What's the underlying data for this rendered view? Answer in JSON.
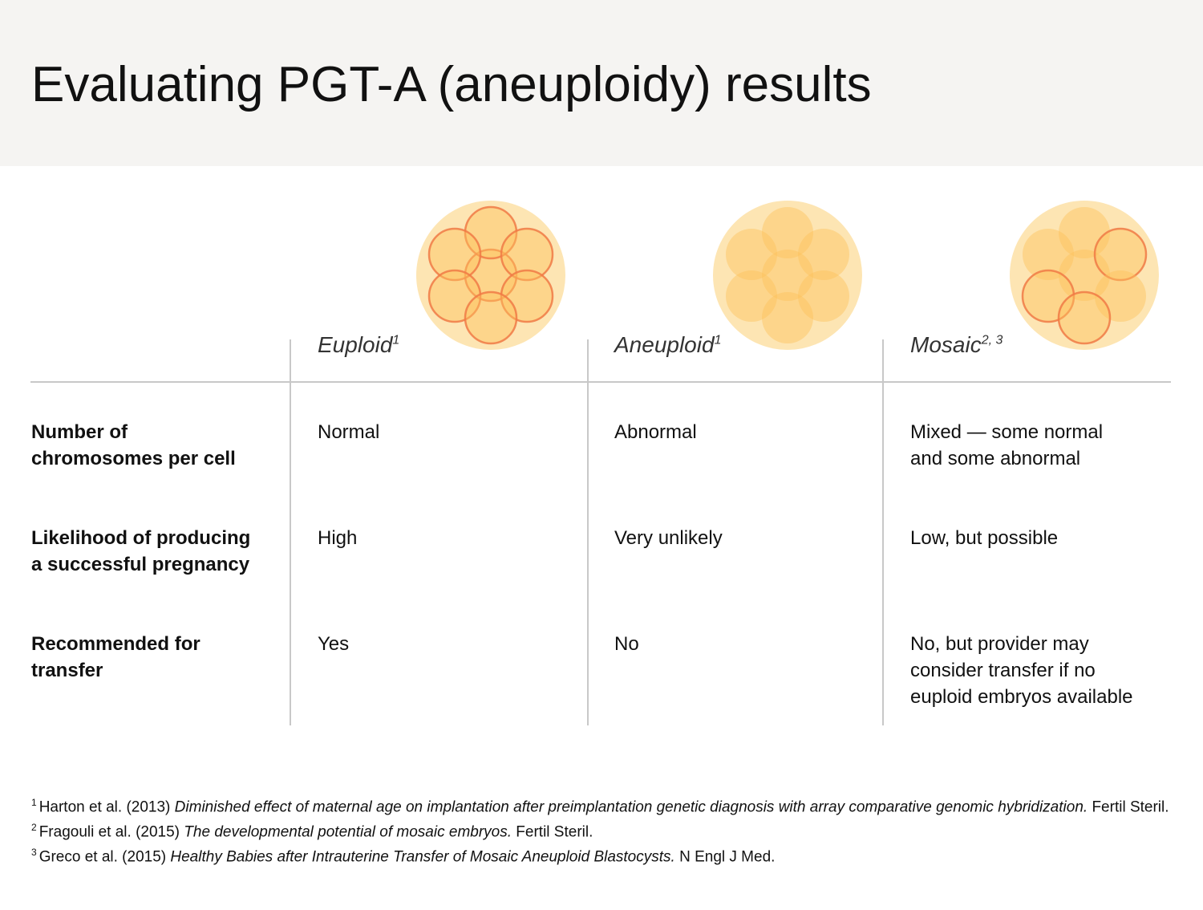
{
  "header": {
    "title": "Evaluating PGT-A (aneuploidy) results"
  },
  "table": {
    "columns": [
      {
        "label": "Euploid",
        "sup": "1"
      },
      {
        "label": "Aneuploid",
        "sup": "1"
      },
      {
        "label": "Mosaic",
        "sup": "2, 3"
      }
    ],
    "rows": [
      {
        "label": [
          "Number of",
          "chromosomes per cell"
        ],
        "cells": [
          [
            "Normal"
          ],
          [
            "Abnormal"
          ],
          [
            "Mixed — some normal",
            "and some abnormal"
          ]
        ]
      },
      {
        "label": [
          "Likelihood of producing",
          "a successful pregnancy"
        ],
        "cells": [
          [
            "High"
          ],
          [
            "Very unlikely"
          ],
          [
            "Low, but possible"
          ]
        ]
      },
      {
        "label": [
          "Recommended for",
          "transfer"
        ],
        "cells": [
          [
            "Yes"
          ],
          [
            "No"
          ],
          [
            "No, but provider may",
            "consider transfer if no",
            "euploid embryos available"
          ]
        ]
      }
    ]
  },
  "footnotes": [
    {
      "number": "1",
      "authors": "Harton et al. (2013)",
      "title": "Diminished effect of maternal age on implantation after preimplantation genetic diagnosis with array comparative genomic hybridization.",
      "source": "Fertil Steril."
    },
    {
      "number": "2",
      "authors": "Fragouli et al. (2015)",
      "title": "The developmental potential of mosaic embryos.",
      "source": "Fertil Steril."
    },
    {
      "number": "3",
      "authors": "Greco et al. (2015)",
      "title": "Healthy Babies after Intrauterine Transfer of Mosaic Aneuploid Blastocysts.",
      "source": "N Engl J Med."
    }
  ]
}
